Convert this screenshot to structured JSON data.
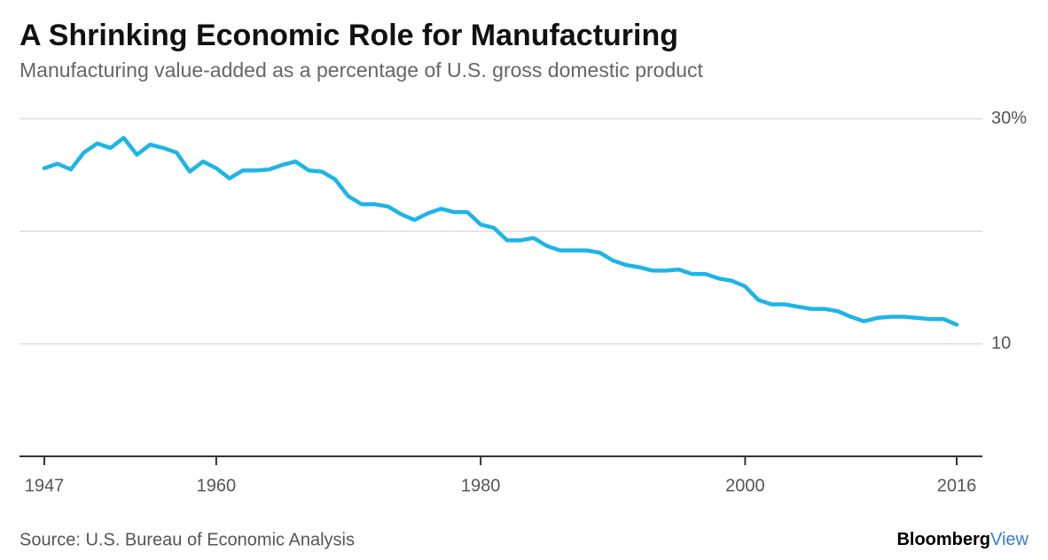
{
  "chart_data": {
    "type": "line",
    "title": "A Shrinking Economic Role for Manufacturing",
    "subtitle": "Manufacturing value-added as a percentage of U.S. gross domestic product",
    "source": "Source: U.S. Bureau of Economic Analysis",
    "brand": [
      "Bloomberg",
      "View"
    ],
    "x": [
      1947,
      1948,
      1949,
      1950,
      1951,
      1952,
      1953,
      1954,
      1955,
      1956,
      1957,
      1958,
      1959,
      1960,
      1961,
      1962,
      1963,
      1964,
      1965,
      1966,
      1967,
      1968,
      1969,
      1970,
      1971,
      1972,
      1973,
      1974,
      1975,
      1976,
      1977,
      1978,
      1979,
      1980,
      1981,
      1982,
      1983,
      1984,
      1985,
      1986,
      1987,
      1988,
      1989,
      1990,
      1991,
      1992,
      1993,
      1994,
      1995,
      1996,
      1997,
      1998,
      1999,
      2000,
      2001,
      2002,
      2003,
      2004,
      2005,
      2006,
      2007,
      2008,
      2009,
      2010,
      2011,
      2012,
      2013,
      2014,
      2015,
      2016
    ],
    "series": [
      {
        "name": "Manufacturing value-added",
        "color": "#1db5e6",
        "values": [
          25.6,
          26.0,
          25.5,
          27.0,
          27.8,
          27.4,
          28.3,
          26.8,
          27.7,
          27.4,
          27.0,
          25.3,
          26.2,
          25.6,
          24.7,
          25.4,
          25.4,
          25.5,
          25.9,
          26.2,
          25.4,
          25.3,
          24.6,
          23.1,
          22.4,
          22.4,
          22.2,
          21.5,
          21.0,
          21.6,
          22.0,
          21.7,
          21.7,
          20.6,
          20.3,
          19.2,
          19.2,
          19.4,
          18.7,
          18.3,
          18.3,
          18.3,
          18.1,
          17.4,
          17.0,
          16.8,
          16.5,
          16.5,
          16.6,
          16.2,
          16.2,
          15.8,
          15.6,
          15.1,
          13.9,
          13.5,
          13.5,
          13.3,
          13.1,
          13.1,
          12.9,
          12.4,
          12.0,
          12.3,
          12.4,
          12.4,
          12.3,
          12.2,
          12.2,
          11.7
        ]
      }
    ],
    "xlim": [
      1947,
      2016
    ],
    "xticks": [
      1947,
      1960,
      1980,
      2000,
      2016
    ],
    "ylim": [
      0,
      30
    ],
    "yticks": [
      {
        "value": 30,
        "label": "30%"
      },
      {
        "value": 20,
        "label": null
      },
      10
    ],
    "grid": true
  }
}
